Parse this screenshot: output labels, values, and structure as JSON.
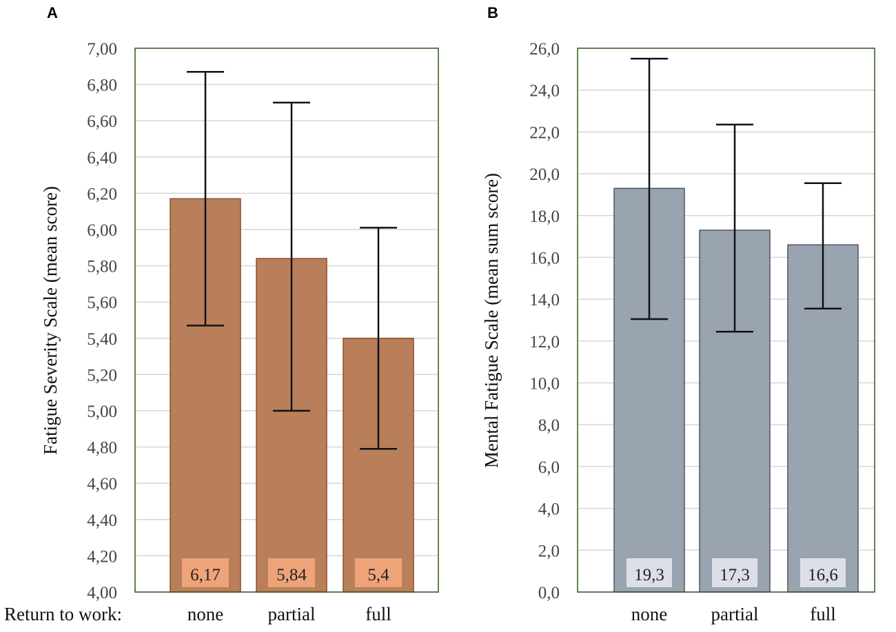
{
  "chart_data": [
    {
      "type": "bar",
      "panel": "A",
      "title": "",
      "xlabel": "Return to work:",
      "ylabel": "Fatigue Severity Scale (mean score)",
      "categories": [
        "none",
        "partial",
        "full"
      ],
      "values": [
        6.17,
        5.84,
        5.4
      ],
      "value_labels": [
        "6,17",
        "5,84",
        "5,4"
      ],
      "error_low": [
        5.47,
        5.0,
        4.79
      ],
      "error_high": [
        6.87,
        6.7,
        6.01
      ],
      "ylim": [
        4.0,
        7.0
      ],
      "yticks": [
        4.0,
        4.2,
        4.4,
        4.6,
        4.8,
        5.0,
        5.2,
        5.4,
        5.6,
        5.8,
        6.0,
        6.2,
        6.4,
        6.6,
        6.8,
        7.0
      ],
      "ytick_labels": [
        "4,00",
        "4,20",
        "4,40",
        "4,60",
        "4,80",
        "5,00",
        "5,20",
        "5,40",
        "5,60",
        "5,80",
        "6,00",
        "6,20",
        "6,40",
        "6,60",
        "6,80",
        "7,00"
      ],
      "grid": true,
      "bar_color": "#b97f5b",
      "bar_edge": "#8d4f2c",
      "label_bg": "#f0a67a",
      "frame_color": "#2f5a1a"
    },
    {
      "type": "bar",
      "panel": "B",
      "title": "",
      "xlabel": "",
      "ylabel": "Mental Fatigue Scale (mean sum score)",
      "categories": [
        "none",
        "partial",
        "full"
      ],
      "values": [
        19.3,
        17.3,
        16.6
      ],
      "value_labels": [
        "19,3",
        "17,3",
        "16,6"
      ],
      "error_low": [
        13.05,
        12.45,
        13.55
      ],
      "error_high": [
        25.5,
        22.35,
        19.55
      ],
      "ylim": [
        0,
        26.0
      ],
      "yticks": [
        0,
        2,
        4,
        6,
        8,
        10,
        12,
        14,
        16,
        18,
        20,
        22,
        24,
        26
      ],
      "ytick_labels": [
        "0,0",
        "2,0",
        "4,0",
        "6,0",
        "8,0",
        "10,0",
        "12,0",
        "14,0",
        "16,0",
        "18,0",
        "20,0",
        "22,0",
        "24,0",
        "26,0"
      ],
      "grid": true,
      "bar_color": "#9aa3b0",
      "bar_edge": "#4a5565",
      "label_bg": "#dfe3ea",
      "frame_color": "#2f5a1a"
    }
  ]
}
